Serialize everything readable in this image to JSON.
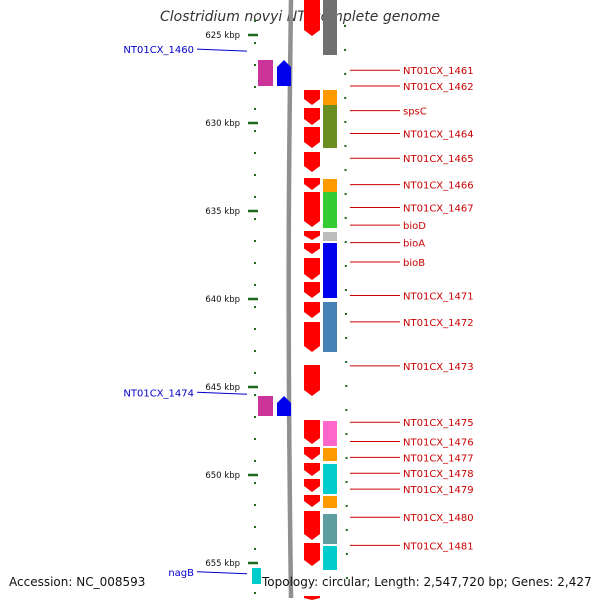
{
  "title": "Clostridium novyi NT, complete genome",
  "footer": {
    "accession": "Accession: NC_008593",
    "summary": "Topology: circular; Length: 2,547,720 bp; Genes: 2,427"
  },
  "colors": {
    "backbone": "#909090",
    "tick": "#1e6b1e",
    "left_label": "#0000cc",
    "right_label": "#cc0000",
    "gene_red": "#ff0000"
  },
  "scale": [
    {
      "label": "625 kbp",
      "kbp": 625
    },
    {
      "label": "630 kbp",
      "kbp": 630
    },
    {
      "label": "635 kbp",
      "kbp": 635
    },
    {
      "label": "640 kbp",
      "kbp": 640
    },
    {
      "label": "645 kbp",
      "kbp": 645
    },
    {
      "label": "650 kbp",
      "kbp": 650
    },
    {
      "label": "655 kbp",
      "kbp": 655
    }
  ],
  "left_genes": [
    {
      "label": "NT01CX_1460",
      "kbp": 625.8
    },
    {
      "label": "NT01CX_1474",
      "kbp": 645.3
    },
    {
      "label": "nagB",
      "kbp": 655.5
    }
  ],
  "right_genes": [
    {
      "label": "NT01CX_1461",
      "kbp": 627.0
    },
    {
      "label": "NT01CX_1462",
      "kbp": 627.9
    },
    {
      "label": "spsC",
      "kbp": 629.3
    },
    {
      "label": "NT01CX_1464",
      "kbp": 630.6
    },
    {
      "label": "NT01CX_1465",
      "kbp": 632.0
    },
    {
      "label": "NT01CX_1466",
      "kbp": 633.5
    },
    {
      "label": "NT01CX_1467",
      "kbp": 634.8
    },
    {
      "label": "bioD",
      "kbp": 635.8
    },
    {
      "label": "bioA",
      "kbp": 636.8
    },
    {
      "label": "bioB",
      "kbp": 637.9
    },
    {
      "label": "NT01CX_1471",
      "kbp": 639.8
    },
    {
      "label": "NT01CX_1472",
      "kbp": 641.3
    },
    {
      "label": "NT01CX_1473",
      "kbp": 643.8
    },
    {
      "label": "NT01CX_1475",
      "kbp": 647.0
    },
    {
      "label": "NT01CX_1476",
      "kbp": 648.1
    },
    {
      "label": "NT01CX_1477",
      "kbp": 649.0
    },
    {
      "label": "NT01CX_1478",
      "kbp": 649.9
    },
    {
      "label": "NT01CX_1479",
      "kbp": 650.8
    },
    {
      "label": "NT01CX_1480",
      "kbp": 652.4
    },
    {
      "label": "NT01CX_1481",
      "kbp": 654.0
    }
  ]
}
